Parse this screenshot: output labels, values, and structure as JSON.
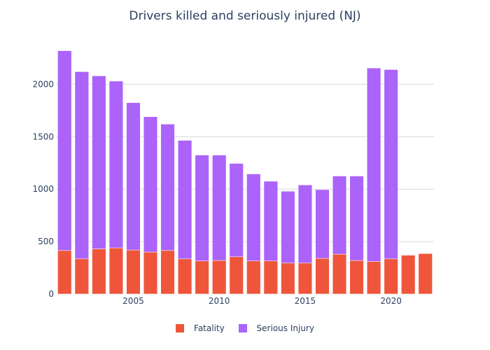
{
  "chart_data": {
    "type": "bar",
    "stacked": true,
    "title": "Drivers killed and seriously injured (NJ)",
    "xlabel": "",
    "ylabel": "",
    "x": [
      2001,
      2002,
      2003,
      2004,
      2005,
      2006,
      2007,
      2008,
      2009,
      2010,
      2011,
      2012,
      2013,
      2014,
      2015,
      2016,
      2017,
      2018,
      2019,
      2020,
      2021,
      2022
    ],
    "xticks": [
      2005,
      2010,
      2015,
      2020
    ],
    "xlim": [
      2000.5,
      2022.5
    ],
    "ylim": [
      0,
      2470
    ],
    "yticks": [
      0,
      500,
      1000,
      1500,
      2000
    ],
    "series": [
      {
        "name": "Fatality",
        "color": "#ef553b",
        "values": [
          415,
          335,
          430,
          440,
          420,
          400,
          415,
          335,
          315,
          320,
          355,
          315,
          315,
          295,
          295,
          340,
          380,
          320,
          310,
          335,
          370,
          385
        ]
      },
      {
        "name": "Serious Injury",
        "color": "#ab63fa",
        "values": [
          1905,
          1785,
          1650,
          1590,
          1405,
          1290,
          1205,
          1130,
          1010,
          1005,
          890,
          830,
          760,
          685,
          745,
          655,
          745,
          805,
          1845,
          1805,
          0,
          0
        ]
      }
    ],
    "grid": true,
    "legend_position": "bottom-center"
  }
}
